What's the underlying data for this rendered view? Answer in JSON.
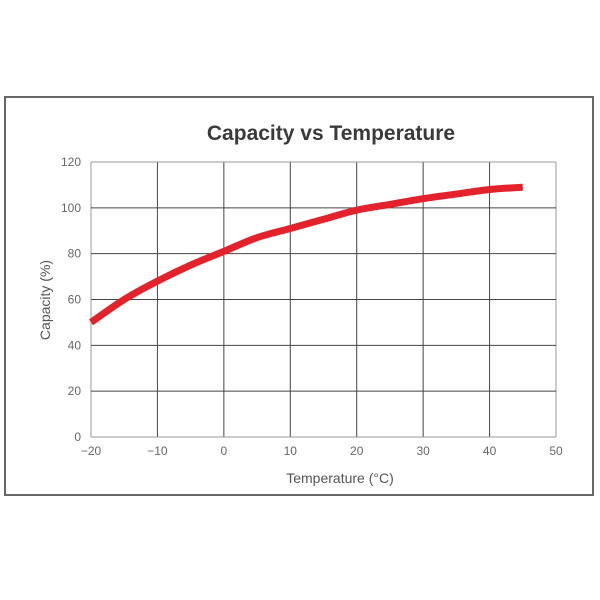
{
  "chart_data": {
    "type": "line",
    "title": "Capacity vs Temperature",
    "xlabel": "Temperature (°C)",
    "ylabel": "Capacity (%)",
    "xlim": [
      -20,
      50
    ],
    "ylim": [
      0,
      120
    ],
    "xticks": [
      -20,
      -10,
      0,
      10,
      20,
      30,
      40,
      50
    ],
    "yticks": [
      0,
      20,
      40,
      60,
      80,
      100,
      120
    ],
    "xtick_labels": [
      "−20",
      "−10",
      "0",
      "10",
      "20",
      "30",
      "40",
      "50"
    ],
    "ytick_labels": [
      "0",
      "20",
      "40",
      "60",
      "80",
      "100",
      "120"
    ],
    "grid": true,
    "series": [
      {
        "color": "#e3222b",
        "x": [
          -20,
          -15,
          -10,
          -5,
          0,
          5,
          10,
          15,
          20,
          25,
          30,
          35,
          40,
          45
        ],
        "y": [
          50,
          60,
          68,
          75,
          81,
          87,
          91,
          95,
          99,
          101.5,
          104,
          106,
          108,
          109
        ]
      }
    ]
  }
}
